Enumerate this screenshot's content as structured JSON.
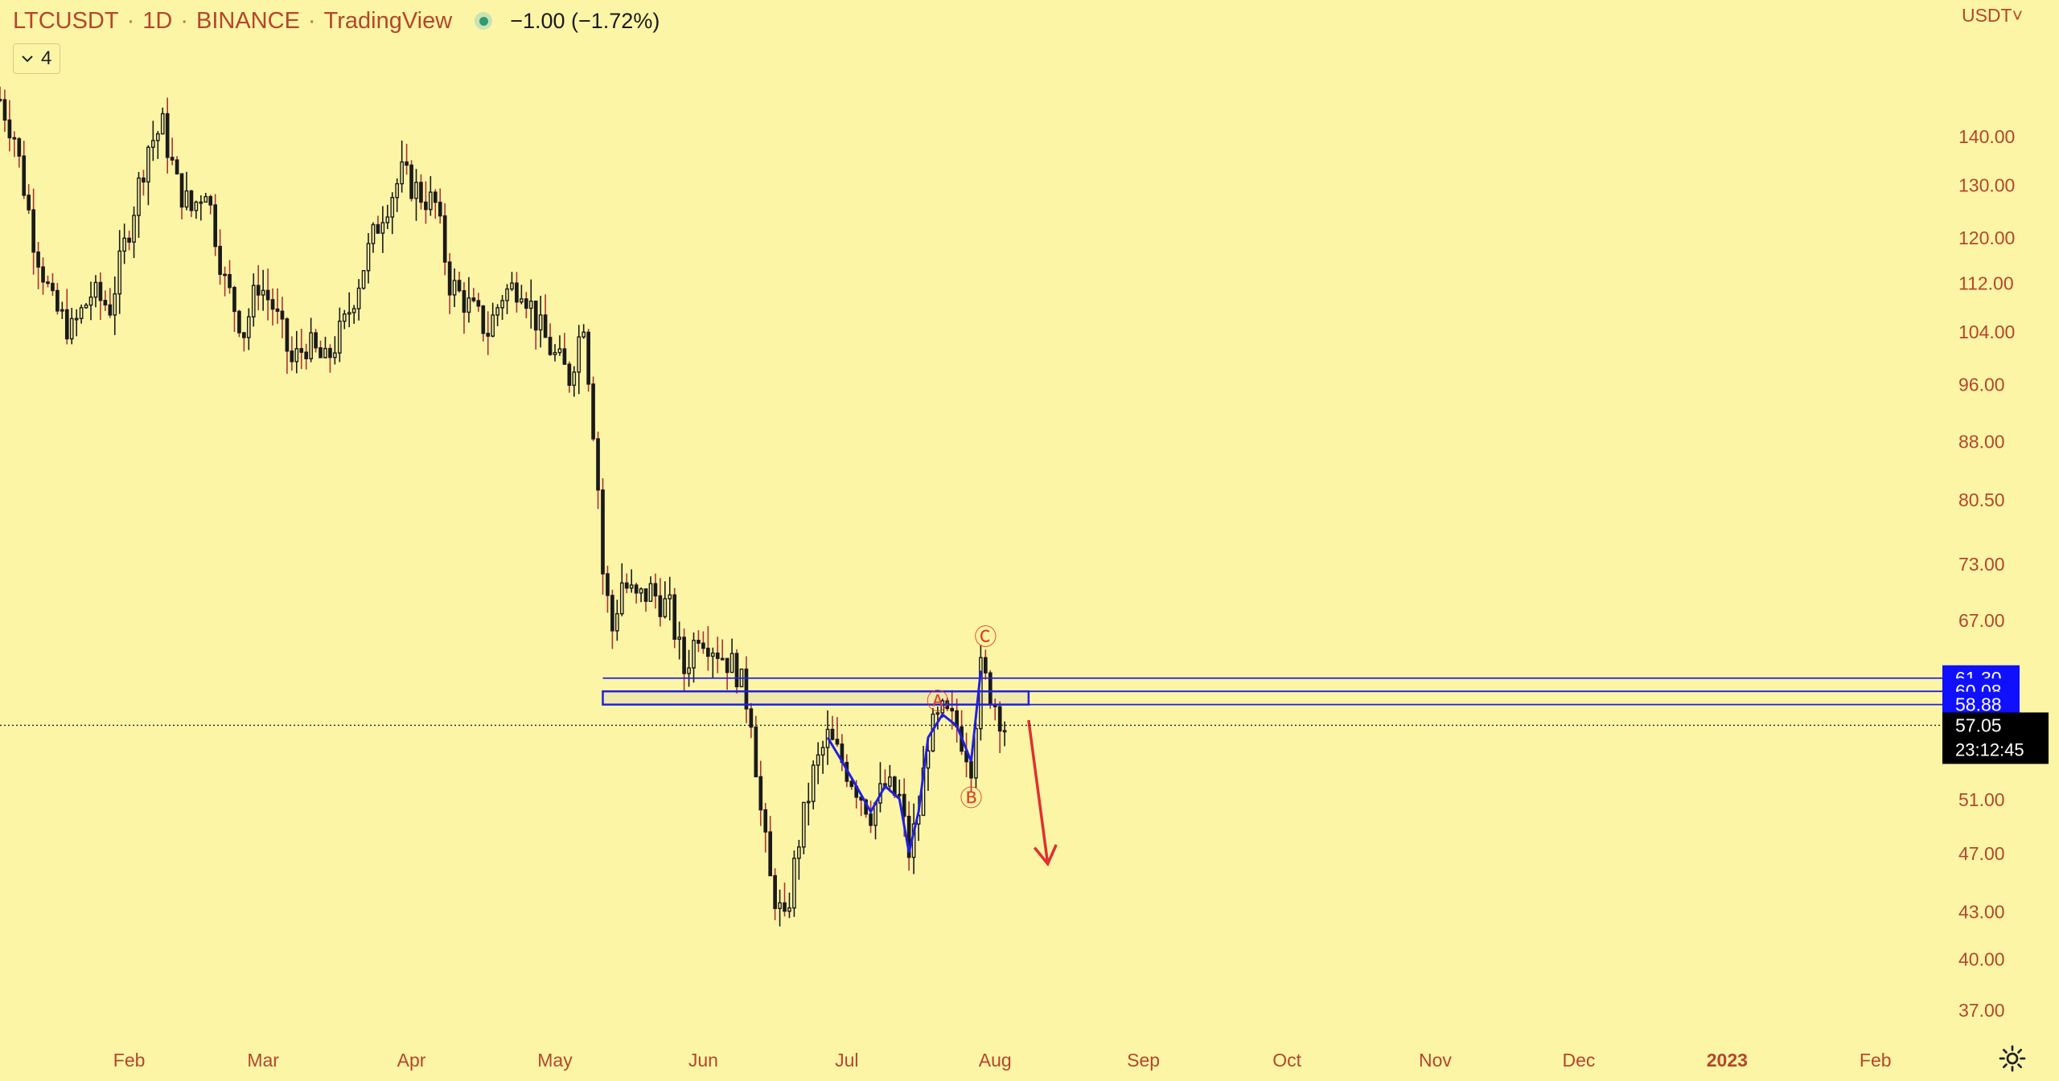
{
  "header": {
    "symbol": "LTCUSDT",
    "interval": "1D",
    "exchange": "BINANCE",
    "source": "TradingView",
    "change": "−1.00 (−1.72%)"
  },
  "legend_toggle": {
    "count": "4"
  },
  "currency": {
    "label": "USDT˅"
  },
  "colors": {
    "background": "#fdf5a6",
    "candle": "#1a1a1a",
    "accent": "#b5462c",
    "zone": "#2020e0",
    "arrow": "#e03030",
    "badge_blue": "#1010ff"
  },
  "chart_data": {
    "type": "candlestick",
    "y_scale": "log",
    "ylim": [
      35.5,
      160
    ],
    "y_ticks": [
      "140.00",
      "130.00",
      "120.00",
      "112.00",
      "104.00",
      "96.00",
      "88.00",
      "80.50",
      "73.00",
      "67.00",
      "51.00",
      "47.00",
      "43.00",
      "40.00",
      "37.00"
    ],
    "x_ticks": [
      "Feb",
      "Mar",
      "Apr",
      "May",
      "Jun",
      "Jul",
      "Aug",
      "Sep",
      "Oct",
      "Nov",
      "Dec",
      "2023",
      "Feb"
    ],
    "x_tick_dates": [
      "2022-02-01",
      "2022-03-01",
      "2022-04-01",
      "2022-05-01",
      "2022-06-01",
      "2022-07-01",
      "2022-08-01",
      "2022-09-01",
      "2022-10-01",
      "2022-11-01",
      "2022-12-01",
      "2023-01-01",
      "2023-02-01"
    ],
    "xlim": [
      "2022-01-05",
      "2023-02-15"
    ],
    "price_badges": [
      {
        "value": 61.3,
        "label": "61.30"
      },
      {
        "value": 60.08,
        "label": "60.08"
      },
      {
        "value": 58.88,
        "label": "58.88"
      }
    ],
    "last_price": {
      "value": 57.05,
      "label": "57.05",
      "countdown": "23:12:45"
    },
    "price_path": [
      [
        "2022-01-05",
        148
      ],
      [
        "2022-01-08",
        140
      ],
      [
        "2022-01-12",
        120
      ],
      [
        "2022-01-16",
        108
      ],
      [
        "2022-01-20",
        104
      ],
      [
        "2022-01-24",
        110
      ],
      [
        "2022-01-28",
        108
      ],
      [
        "2022-02-01",
        122
      ],
      [
        "2022-02-05",
        138
      ],
      [
        "2022-02-08",
        142
      ],
      [
        "2022-02-11",
        130
      ],
      [
        "2022-02-14",
        125
      ],
      [
        "2022-02-17",
        130
      ],
      [
        "2022-02-21",
        112
      ],
      [
        "2022-02-25",
        104
      ],
      [
        "2022-02-28",
        112
      ],
      [
        "2022-03-03",
        108
      ],
      [
        "2022-03-07",
        99
      ],
      [
        "2022-03-10",
        102
      ],
      [
        "2022-03-14",
        99
      ],
      [
        "2022-03-18",
        105
      ],
      [
        "2022-03-22",
        115
      ],
      [
        "2022-03-26",
        125
      ],
      [
        "2022-03-30",
        132
      ],
      [
        "2022-04-03",
        128
      ],
      [
        "2022-04-06",
        126
      ],
      [
        "2022-04-09",
        112
      ],
      [
        "2022-04-13",
        108
      ],
      [
        "2022-04-17",
        104
      ],
      [
        "2022-04-20",
        110
      ],
      [
        "2022-04-24",
        112
      ],
      [
        "2022-04-28",
        104
      ],
      [
        "2022-05-01",
        100
      ],
      [
        "2022-05-04",
        97
      ],
      [
        "2022-05-07",
        106
      ],
      [
        "2022-05-09",
        90
      ],
      [
        "2022-05-10",
        82
      ],
      [
        "2022-05-11",
        72
      ],
      [
        "2022-05-13",
        66
      ],
      [
        "2022-05-15",
        71
      ],
      [
        "2022-05-18",
        69
      ],
      [
        "2022-05-21",
        70
      ],
      [
        "2022-05-25",
        68
      ],
      [
        "2022-05-28",
        62
      ],
      [
        "2022-05-31",
        66
      ],
      [
        "2022-06-04",
        64
      ],
      [
        "2022-06-08",
        62
      ],
      [
        "2022-06-11",
        58
      ],
      [
        "2022-06-13",
        50
      ],
      [
        "2022-06-15",
        45
      ],
      [
        "2022-06-18",
        42
      ],
      [
        "2022-06-21",
        48
      ],
      [
        "2022-06-24",
        53
      ],
      [
        "2022-06-27",
        56
      ],
      [
        "2022-06-30",
        54
      ],
      [
        "2022-07-03",
        52
      ],
      [
        "2022-07-06",
        50
      ],
      [
        "2022-07-09",
        52
      ],
      [
        "2022-07-12",
        51
      ],
      [
        "2022-07-14",
        47
      ],
      [
        "2022-07-16",
        50
      ],
      [
        "2022-07-18",
        56
      ],
      [
        "2022-07-21",
        58
      ],
      [
        "2022-07-24",
        57
      ],
      [
        "2022-07-27",
        54
      ],
      [
        "2022-07-29",
        62
      ],
      [
        "2022-07-31",
        60
      ],
      [
        "2022-08-02",
        58
      ],
      [
        "2022-08-03",
        57
      ]
    ],
    "zone_upper": {
      "from": "2022-05-11",
      "to": "2022-08-08",
      "low": 58.88,
      "high": 60.08
    },
    "zone_lower_lines": [
      58.88,
      60.08
    ],
    "wave_labels": [
      {
        "text": "Ⓐ",
        "date": "2022-07-20",
        "value": 59.2
      },
      {
        "text": "Ⓑ",
        "date": "2022-07-27",
        "value": 51.1
      },
      {
        "text": "Ⓒ",
        "date": "2022-07-30",
        "value": 65.3
      }
    ],
    "projection_arrow": {
      "from": [
        "2022-08-08",
        57.5
      ],
      "to": [
        "2022-08-12",
        46.2
      ]
    }
  }
}
